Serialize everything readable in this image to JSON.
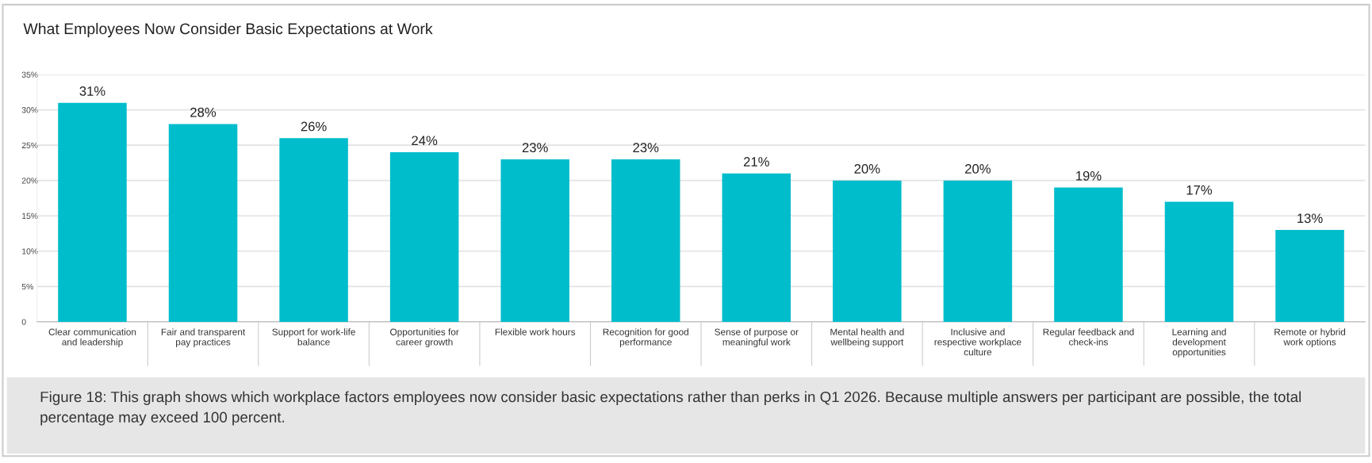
{
  "chart_data": {
    "type": "bar",
    "title": "What Employees Now Consider Basic Expectations at Work",
    "categories": [
      "Clear communication and leadership",
      "Fair and transparent pay practices",
      "Support for work-life balance",
      "Opportunities for career growth",
      "Flexible work hours",
      "Recognition for good performance",
      "Sense of purpose or meaningful work",
      "Mental health and wellbeing support",
      "Inclusive and respective workplace culture",
      "Regular feedback and check-ins",
      "Learning and development opportunities",
      "Remote or hybrid work options"
    ],
    "values": [
      31,
      28,
      26,
      24,
      23,
      23,
      21,
      20,
      20,
      19,
      17,
      13
    ],
    "value_labels": [
      "31%",
      "28%",
      "26%",
      "24%",
      "23%",
      "23%",
      "21%",
      "20%",
      "20%",
      "19%",
      "17%",
      "13%"
    ],
    "color": "#00bdcc",
    "ylim": [
      0,
      35
    ],
    "yticks": [
      0,
      {
        "value": 5,
        "label": "5%"
      },
      {
        "value": 10,
        "label": "10%"
      },
      {
        "value": 15,
        "label": "15%"
      },
      {
        "value": 20,
        "label": "20%"
      },
      {
        "value": 25,
        "label": "25%"
      },
      {
        "value": 30,
        "label": "30%"
      },
      {
        "value": 35,
        "label": "35%"
      }
    ],
    "grid": "y",
    "annotations": [
      "Figure 18: This graph shows which workplace factors employees now consider basic expectations rather than perks in Q1 2026. Because multiple answers per participant are possible, the total percentage may exceed 100 percent."
    ]
  }
}
